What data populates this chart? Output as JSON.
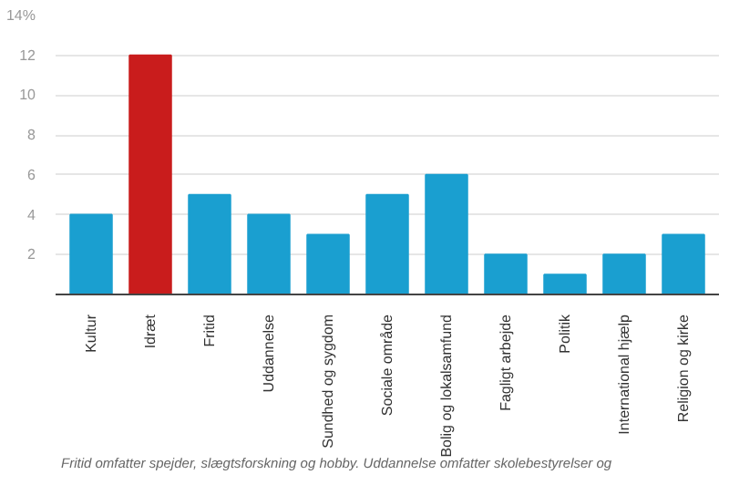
{
  "chart_data": {
    "type": "bar",
    "categories": [
      "Kultur",
      "Idræt",
      "Fritid",
      "Uddannelse",
      "Sundhed og sygdom",
      "Sociale område",
      "Bolig og lokalsamfund",
      "Fagligt arbejde",
      "Politik",
      "International hjælp",
      "Religion og kirke"
    ],
    "values": [
      4,
      12,
      5,
      4,
      3,
      5,
      6,
      2,
      1,
      2,
      3
    ],
    "colors": [
      "#1a9fd0",
      "#c91c1c",
      "#1a9fd0",
      "#1a9fd0",
      "#1a9fd0",
      "#1a9fd0",
      "#1a9fd0",
      "#1a9fd0",
      "#1a9fd0",
      "#1a9fd0",
      "#1a9fd0"
    ],
    "ylim": [
      0,
      14
    ],
    "yticks": [
      2,
      4,
      6,
      8,
      10,
      12,
      {
        "value": 14,
        "label": "14%"
      }
    ],
    "grid": "y",
    "annotations": [
      "Fritid omfatter spejder, slægtsforskning og hobby. Uddannelse omfatter skolebestyrelser og"
    ]
  }
}
